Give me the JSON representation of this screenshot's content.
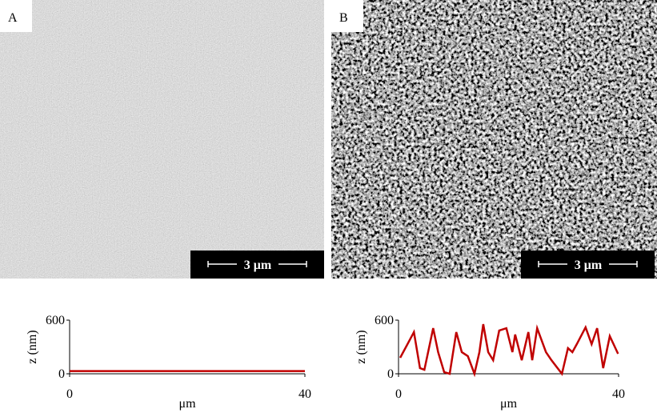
{
  "panels": [
    {
      "label": "A",
      "scale_bar": "3 μm"
    },
    {
      "label": "B",
      "scale_bar": "3 μm"
    }
  ],
  "chart_data": [
    {
      "type": "line",
      "xlabel": "μm",
      "ylabel": "z (nm)",
      "color": "#c00000",
      "x": [
        0,
        40
      ],
      "values": [
        30,
        30
      ],
      "xlim": [
        0,
        40
      ],
      "ylim": [
        0,
        600
      ],
      "xticks": [
        0,
        40
      ],
      "yticks": [
        0,
        600
      ]
    },
    {
      "type": "line",
      "xlabel": "μm",
      "ylabel": "z (nm)",
      "color": "#c00000",
      "x": [
        0.3,
        2.8,
        3.9,
        4.7,
        6.3,
        7.2,
        8.3,
        9.3,
        10.5,
        11.5,
        12.6,
        13.8,
        14.7,
        15.4,
        16.3,
        17.2,
        18.3,
        19.6,
        20.7,
        21.2,
        22.4,
        23.6,
        24.3,
        25.2,
        26.8,
        27.8,
        29.7,
        30.8,
        31.6,
        32.4,
        34.0,
        35.1,
        36.1,
        37.2,
        38.4,
        39.9
      ],
      "values": [
        179,
        466,
        63,
        45,
        510,
        242,
        18,
        0,
        466,
        242,
        197,
        0,
        242,
        555,
        242,
        152,
        484,
        510,
        242,
        439,
        152,
        466,
        152,
        510,
        242,
        152,
        0,
        287,
        242,
        331,
        520,
        331,
        510,
        63,
        421,
        224
      ],
      "xlim": [
        0,
        40
      ],
      "ylim": [
        0,
        600
      ],
      "xticks": [
        0,
        40
      ],
      "yticks": [
        0,
        600
      ]
    }
  ]
}
